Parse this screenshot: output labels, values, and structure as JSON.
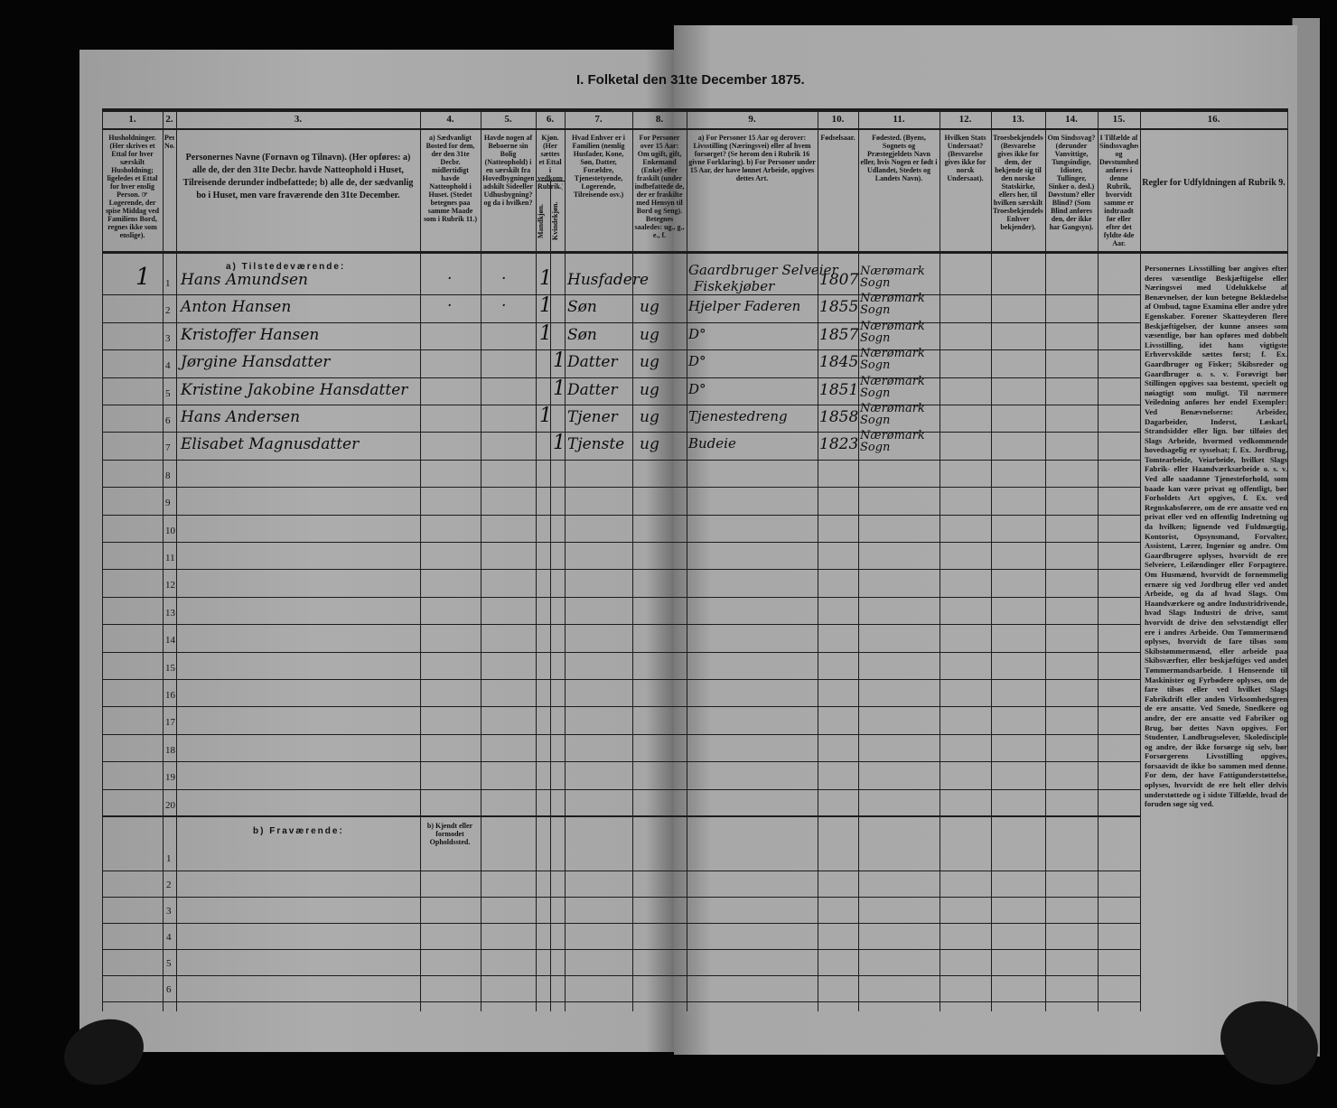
{
  "title": "I. Folketal den 31te December 1875.",
  "columns": [
    {
      "no": "1.",
      "text": "Husholdninger. (Her skrives et Ettal for hver særskilt Husholdning; ligeledes et Ettal for hver enslig Person. ☞ Logerende, der spise Middag ved Familiens Bord, regnes ikke som enslige)."
    },
    {
      "no": "2.",
      "text": "Personernes No."
    },
    {
      "no": "3.",
      "text": "Personernes Navne (Fornavn og Tilnavn). (Her opføres: a) alle de, der den 31te Decbr. havde Natteophold i Huset, Tilreisende derunder indbefattede; b) alle de, der sædvanlig bo i Huset, men vare fraværende den 31te December."
    },
    {
      "no": "4.",
      "text": "a) Sædvanligt Bosted for dem, der den 31te Decbr. midlertidigt havde Natteophold i Huset. (Stedet betegnes paa samme Maade som i Rubrik 11.)"
    },
    {
      "no": "5.",
      "text": "Havde nogen af Beboerne sin Bolig (Natteophold) i en særskilt fra Hovedbygningen adskilt Sideeller Udhusbygning? og da i hvilken?"
    },
    {
      "no": "6.",
      "text": "Kjøn. (Her sættes et Ettal i vedkommende Rubrik.)",
      "sub": [
        "Mandkjøn.",
        "Kvindekjøn."
      ]
    },
    {
      "no": "7.",
      "text": "Hvad Enhver er i Familien (nemlig Husfader, Kone, Søn, Datter, Forældre, Tjenestetyende, Logerende, Tilreisende osv.)"
    },
    {
      "no": "8.",
      "text": "For Personer over 15 Aar: Om ugift, gift, Enkemand (Enke) eller fraskilt (under indbefattede de, der er fraskilte med Hensyn til Bord og Seng). Betegnes saaledes: ug., g., e., f."
    },
    {
      "no": "9.",
      "text": "a) For Personer 15 Aar og derover: Livsstilling (Næringsvei) eller af hvem forsørget? (Se herom den i Rubrik 16 givne Forklaring). b) For Personer under 15 Aar, der have lønnet Arbeide, opgives dettes Art."
    },
    {
      "no": "10.",
      "text": "Fødselsaar."
    },
    {
      "no": "11.",
      "text": "Fødested. (Byens, Sognets og Præstegjeldets Navn eller, hvis Nogen er født i Udlandet, Stedets og Landets Navn)."
    },
    {
      "no": "12.",
      "text": "Hvilken Stats Undersaat? (Besvarelse gives ikke for norsk Undersaat)."
    },
    {
      "no": "13.",
      "text": "Troesbekjendelse. (Besvarelse gives ikke for dem, der bekjende sig til den norske Statskirke, ellers her, til hvilken særskilt Troesbekjendelse Enhver bekjender)."
    },
    {
      "no": "14.",
      "text": "Om Sindssvag? (derunder Vanvittige, Tungsindige, Idioter, Tullinger, Sinker o. desl.) Døvstum? eller Blind? (Som Blind anføres den, der ikke har Gangsyn)."
    },
    {
      "no": "15.",
      "text": "I Tilfælde af Sindssvaghed og Døvstumhed anføres i denne Rubrik, hvorvidt samme er indtraadt før eller efter det fyldte 4de Aar."
    },
    {
      "no": "16.",
      "text": "Regler for Udfyldningen af Rubrik 9."
    }
  ],
  "section_present": "a) Tilstedeværende:",
  "section_absent": "b) Fraværende:",
  "absent_col4_label": "b) Kjendt eller formodet Opholdssted.",
  "rows": [
    {
      "n": "1",
      "household": "1",
      "name": "Hans Amundsen",
      "c4": ".",
      "c5": ".",
      "male": "1",
      "female": "",
      "family": "Husfader",
      "marital": "e",
      "occupation": "Gaardbruger Selveier",
      "occupation2": "Fiskekjøber",
      "born": "1807",
      "birthplace": "Nærømark Sogn"
    },
    {
      "n": "2",
      "household": "",
      "name": "Anton Hansen",
      "c4": ".",
      "c5": ".",
      "male": "1",
      "female": "",
      "family": "Søn",
      "marital": "ug",
      "occupation": "Hjelper Faderen",
      "occupation2": "",
      "born": "1855",
      "birthplace": "Nærømark Sogn"
    },
    {
      "n": "3",
      "household": "",
      "name": "Kristoffer Hansen",
      "c4": "",
      "c5": "",
      "male": "1",
      "female": "",
      "family": "Søn",
      "marital": "ug",
      "occupation": "D°",
      "occupation2": "",
      "born": "1857",
      "birthplace": "Nærømark Sogn"
    },
    {
      "n": "4",
      "household": "",
      "name": "Jørgine Hansdatter",
      "c4": "",
      "c5": "",
      "male": "",
      "female": "1",
      "family": "Datter",
      "marital": "ug",
      "occupation": "D°",
      "occupation2": "",
      "born": "1845",
      "birthplace": "Nærømark Sogn"
    },
    {
      "n": "5",
      "household": "",
      "name": "Kristine Jakobine Hansdatter",
      "c4": "",
      "c5": "",
      "male": "",
      "female": "1",
      "family": "Datter",
      "marital": "ug",
      "occupation": "D°",
      "occupation2": "",
      "born": "1851",
      "birthplace": "Nærømark Sogn"
    },
    {
      "n": "6",
      "household": "",
      "name": "Hans Andersen",
      "c4": "",
      "c5": "",
      "male": "1",
      "female": "",
      "family": "Tjener",
      "marital": "ug",
      "occupation": "Tjenestedreng",
      "occupation2": "",
      "born": "1858",
      "birthplace": "Nærømark Sogn"
    },
    {
      "n": "7",
      "household": "",
      "name": "Elisabet Magnusdatter",
      "c4": "",
      "c5": "",
      "male": "",
      "female": "1",
      "family": "Tjenste",
      "marital": "ug",
      "occupation": "Budeie",
      "occupation2": "",
      "born": "1823",
      "birthplace": "Nærømark Sogn"
    }
  ],
  "present_row_numbers": [
    "1",
    "2",
    "3",
    "4",
    "5",
    "6",
    "7",
    "8",
    "9",
    "10",
    "11",
    "12",
    "13",
    "14",
    "15",
    "16",
    "17",
    "18",
    "19",
    "20"
  ],
  "absent_row_numbers": [
    "1",
    "2",
    "3",
    "4",
    "5",
    "6"
  ],
  "instructions": "Personernes Livsstilling bør angives efter deres væsentlige Beskjæftigelse eller Næringsvei med Udelukkelse af Benævnelser, der kun betegne Beklædelse af Ombud, tagne Examina eller andre ydre Egenskaber. Forener Skatteyderen flere Beskjæftigelser, der kunne ansees som væsentlige, bør han opføres med dobbelt Livsstilling, idet hans vigtigste Erhvervskilde sættes først; f. Ex. Gaardbruger og Fisker; Skibsreder og Gaardbruger o. s. v. Forøvrigt bør Stillingen opgives saa bestemt, specielt og nøiagtigt som muligt. Til nærmere Veiledning anføres her endel Exempler: Ved Benævnelserne: Arbeider, Dagarbeider, Inderst, Løskarl, Strandsidder eller lign. bør tilføies det Slags Arbeide, hvormed vedkommende hovedsagelig er sysselsat; f. Ex. Jordbrug, Tomtearbeide, Veiarbeide, hvilket Slags Fabrik- eller Haandværksarbeide o. s. v. Ved alle saadanne Tjenesteforhold, som baade kan være privat og offentligt, bør Forholdets Art opgives, f. Ex. ved Regnskabsførere, om de ere ansatte ved en privat eller ved en offentlig Indretning og da hvilken; lignende ved Fuldmægtig, Kontorist, Opsynsmand, Forvalter, Assistent, Lærer, Ingeniør og andre. Om Gaardbrugere oplyses, hvorvidt de ere Selveiere, Leilændinger eller Forpagtere. Om Husmænd, hvorvidt de fornemmelig ernære sig ved Jordbrug eller ved andet Arbeide, og da af hvad Slags. Om Haandværkere og andre Industridrivende, hvad Slags Industri de drive, samt hvorvidt de drive den selvstændigt eller ere i andres Arbeide. Om Tømmermænd oplyses, hvorvidt de fare tilsøs som Skibstømmermænd, eller arbeide paa Skibsværfter, eller beskjæftiges ved andet Tømmermandsarbeide. I Henseende til Maskinister og Fyrbødere oplyses, om de fare tilsøs eller ved hvilket Slags Fabrikdrift eller anden Virksomhedsgren de ere ansatte. Ved Smede, Snedkere og andre, der ere ansatte ved Fabriker og Brug, bør dettes Navn opgives. For Studenter, Landbrugselever, Skoledisciple og andre, der ikke forsørge sig selv, bør Forsørgerens Livsstilling opgives, forsaavidt de ikke bo sammen med denne. For dem, der have Fattigunderstøttelse, oplyses, hvorvidt de ere helt eller delvis understøttede og i sidste Tilfælde, hvad de foruden søge sig ved.",
  "colors": {
    "background": "#050505",
    "paper": "#a9a9a9",
    "ink": "#111111"
  }
}
